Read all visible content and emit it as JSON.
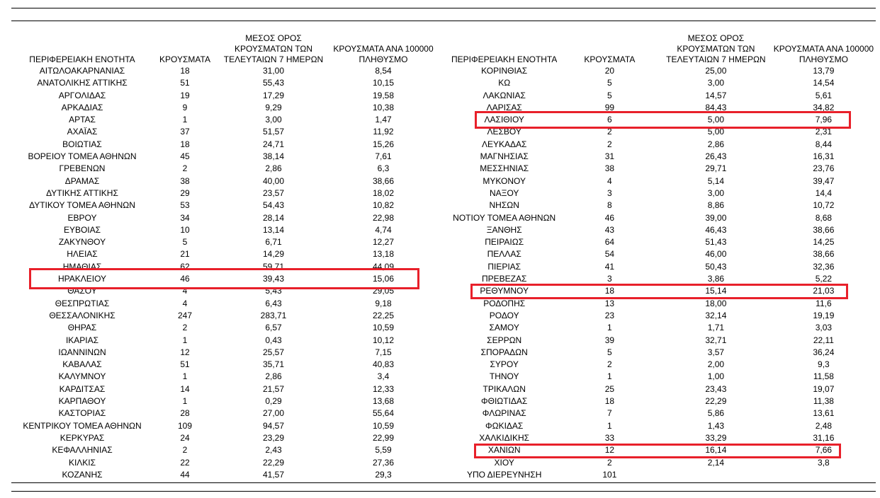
{
  "headers": {
    "region": "ΠΕΡΙΦΕΡΕΙΑΚΗ ΕΝΟΤΗΤΑ",
    "cases": "ΚΡΟΥΣΜΑΤΑ",
    "avg_lines": [
      "ΜΕΣΟΣ ΟΡΟΣ",
      "ΚΡΟΥΣΜΑΤΩΝ ΤΩΝ",
      "ΤΕΛΕΥΤΑΙΩΝ 7 ΗΜΕΡΩΝ"
    ],
    "per100k_lines": [
      "ΚΡΟΥΣΜΑΤΑ ΑΝΑ 100000",
      "ΠΛΗΘΥΣΜΟ"
    ]
  },
  "highlight_color": "#e8202a",
  "left_rows": [
    [
      "ΑΙΤΩΛΟΑΚΑΡΝΑΝΙΑΣ",
      "18",
      "31,00",
      "8,54"
    ],
    [
      "ΑΝΑΤΟΛΙΚΗΣ ΑΤΤΙΚΗΣ",
      "51",
      "55,43",
      "10,15"
    ],
    [
      "ΑΡΓΟΛΙΔΑΣ",
      "19",
      "17,29",
      "19,58"
    ],
    [
      "ΑΡΚΑΔΙΑΣ",
      "9",
      "9,29",
      "10,38"
    ],
    [
      "ΑΡΤΑΣ",
      "1",
      "3,00",
      "1,47"
    ],
    [
      "ΑΧΑΪΑΣ",
      "37",
      "51,57",
      "11,92"
    ],
    [
      "ΒΟΙΩΤΙΑΣ",
      "18",
      "24,71",
      "15,26"
    ],
    [
      "ΒΟΡΕΙΟΥ ΤΟΜΕΑ ΑΘΗΝΩΝ",
      "45",
      "38,14",
      "7,61"
    ],
    [
      "ΓΡΕΒΕΝΩΝ",
      "2",
      "2,86",
      "6,3"
    ],
    [
      "ΔΡΑΜΑΣ",
      "38",
      "40,00",
      "38,66"
    ],
    [
      "ΔΥΤΙΚΗΣ ΑΤΤΙΚΗΣ",
      "29",
      "23,57",
      "18,02"
    ],
    [
      "ΔΥΤΙΚΟΥ ΤΟΜΕΑ ΑΘΗΝΩΝ",
      "53",
      "54,43",
      "10,82"
    ],
    [
      "ΕΒΡΟΥ",
      "34",
      "28,14",
      "22,98"
    ],
    [
      "ΕΥΒΟΙΑΣ",
      "10",
      "13,14",
      "4,74"
    ],
    [
      "ΖΑΚΥΝΘΟΥ",
      "5",
      "6,71",
      "12,27"
    ],
    [
      "ΗΛΕΙΑΣ",
      "21",
      "14,29",
      "13,18"
    ],
    [
      "ΗΜΑΘΙΑΣ",
      "62",
      "59,71",
      "44,09"
    ],
    [
      "ΗΡΑΚΛΕΙΟΥ",
      "46",
      "39,43",
      "15,06"
    ],
    [
      "ΘΑΣΟΥ",
      "4",
      "5,43",
      "29,05"
    ],
    [
      "ΘΕΣΠΡΩΤΙΑΣ",
      "4",
      "6,43",
      "9,18"
    ],
    [
      "ΘΕΣΣΑΛΟΝΙΚΗΣ",
      "247",
      "283,71",
      "22,25"
    ],
    [
      "ΘΗΡΑΣ",
      "2",
      "6,57",
      "10,59"
    ],
    [
      "ΙΚΑΡΙΑΣ",
      "1",
      "0,43",
      "10,12"
    ],
    [
      "ΙΩΑΝΝΙΝΩΝ",
      "12",
      "25,57",
      "7,15"
    ],
    [
      "ΚΑΒΑΛΑΣ",
      "51",
      "35,71",
      "40,83"
    ],
    [
      "ΚΑΛΥΜΝΟΥ",
      "1",
      "2,86",
      "3,4"
    ],
    [
      "ΚΑΡΔΙΤΣΑΣ",
      "14",
      "21,57",
      "12,33"
    ],
    [
      "ΚΑΡΠΑΘΟΥ",
      "1",
      "0,29",
      "13,68"
    ],
    [
      "ΚΑΣΤΟΡΙΑΣ",
      "28",
      "27,00",
      "55,64"
    ],
    [
      "ΚΕΝΤΡΙΚΟΥ ΤΟΜΕΑ ΑΘΗΝΩΝ",
      "109",
      "94,57",
      "10,59"
    ],
    [
      "ΚΕΡΚΥΡΑΣ",
      "24",
      "23,29",
      "22,99"
    ],
    [
      "ΚΕΦΑΛΛΗΝΙΑΣ",
      "2",
      "2,43",
      "5,59"
    ],
    [
      "ΚΙΛΚΙΣ",
      "22",
      "22,29",
      "27,36"
    ],
    [
      "ΚΟΖΑΝΗΣ",
      "44",
      "41,57",
      "29,3"
    ]
  ],
  "right_rows": [
    [
      "ΚΟΡΙΝΘΙΑΣ",
      "20",
      "25,00",
      "13,79"
    ],
    [
      "ΚΩ",
      "5",
      "3,00",
      "14,54"
    ],
    [
      "ΛΑΚΩΝΙΑΣ",
      "5",
      "14,57",
      "5,61"
    ],
    [
      "ΛΑΡΙΣΑΣ",
      "99",
      "84,43",
      "34,82"
    ],
    [
      "ΛΑΣΙΘΙΟΥ",
      "6",
      "5,00",
      "7,96"
    ],
    [
      "ΛΕΣΒΟΥ",
      "2",
      "5,00",
      "2,31"
    ],
    [
      "ΛΕΥΚΑΔΑΣ",
      "2",
      "2,86",
      "8,44"
    ],
    [
      "ΜΑΓΝΗΣΙΑΣ",
      "31",
      "26,43",
      "16,31"
    ],
    [
      "ΜΕΣΣΗΝΙΑΣ",
      "38",
      "29,71",
      "23,76"
    ],
    [
      "ΜΥΚΟΝΟΥ",
      "4",
      "5,14",
      "39,47"
    ],
    [
      "ΝΑΞΟΥ",
      "3",
      "3,00",
      "14,4"
    ],
    [
      "ΝΗΣΩΝ",
      "8",
      "8,86",
      "10,72"
    ],
    [
      "ΝΟΤΙΟΥ ΤΟΜΕΑ ΑΘΗΝΩΝ",
      "46",
      "39,00",
      "8,68"
    ],
    [
      "ΞΑΝΘΗΣ",
      "43",
      "46,43",
      "38,66"
    ],
    [
      "ΠΕΙΡΑΙΩΣ",
      "64",
      "51,43",
      "14,25"
    ],
    [
      "ΠΕΛΛΑΣ",
      "54",
      "46,00",
      "38,66"
    ],
    [
      "ΠΙΕΡΙΑΣ",
      "41",
      "50,43",
      "32,36"
    ],
    [
      "ΠΡΕΒΕΖΑΣ",
      "3",
      "3,86",
      "5,22"
    ],
    [
      "ΡΕΘΥΜΝΟΥ",
      "18",
      "15,14",
      "21,03"
    ],
    [
      "ΡΟΔΟΠΗΣ",
      "13",
      "18,00",
      "11,6"
    ],
    [
      "ΡΟΔΟΥ",
      "23",
      "32,14",
      "19,19"
    ],
    [
      "ΣΑΜΟΥ",
      "1",
      "1,71",
      "3,03"
    ],
    [
      "ΣΕΡΡΩΝ",
      "39",
      "32,71",
      "22,11"
    ],
    [
      "ΣΠΟΡΑΔΩΝ",
      "5",
      "3,57",
      "36,24"
    ],
    [
      "ΣΥΡΟΥ",
      "2",
      "2,00",
      "9,3"
    ],
    [
      "ΤΗΝΟΥ",
      "1",
      "1,00",
      "11,58"
    ],
    [
      "ΤΡΙΚΑΛΩΝ",
      "25",
      "23,43",
      "19,07"
    ],
    [
      "ΦΘΙΩΤΙΔΑΣ",
      "18",
      "22,29",
      "11,38"
    ],
    [
      "ΦΛΩΡΙΝΑΣ",
      "7",
      "5,86",
      "13,61"
    ],
    [
      "ΦΩΚΙΔΑΣ",
      "1",
      "1,43",
      "2,48"
    ],
    [
      "ΧΑΛΚΙΔΙΚΗΣ",
      "33",
      "33,29",
      "31,16"
    ],
    [
      "ΧΑΝΙΩΝ",
      "12",
      "16,14",
      "7,66"
    ],
    [
      "ΧΙΟΥ",
      "2",
      "2,14",
      "3,8"
    ],
    [
      "ΥΠΟ ΔΙΕΡΕΥΝΗΣΗ",
      "101",
      "",
      ""
    ]
  ]
}
